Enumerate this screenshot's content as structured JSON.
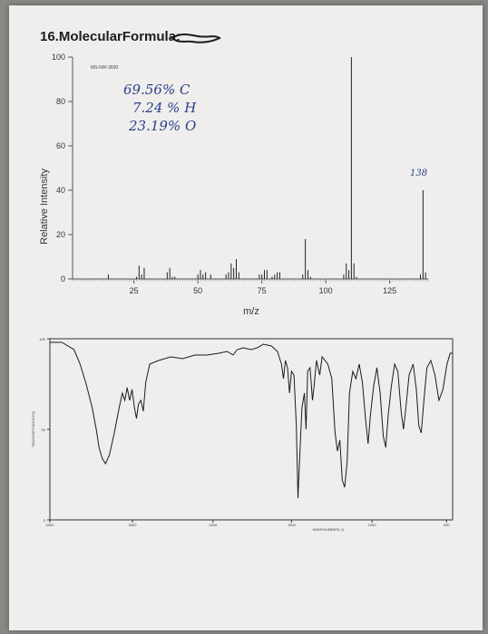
{
  "page": {
    "heading": "16.MolecularFormula:"
  },
  "chart_data": [
    {
      "type": "bar",
      "ylabel": "Relative Intensity",
      "xlabel": "m/z",
      "xlim": [
        1,
        140
      ],
      "ylim": [
        0,
        100
      ],
      "x_ticks": [
        25,
        50,
        75,
        100,
        125
      ],
      "y_ticks": [
        0,
        20,
        40,
        60,
        80,
        100
      ],
      "spectrum_id": "MS-NW-3600",
      "annotations": {
        "composition": [
          "69.56% C",
          "7.24 % H",
          "23.19% O"
        ],
        "peak_label": "138"
      },
      "peaks": [
        {
          "x": 15,
          "y": 2
        },
        {
          "x": 26,
          "y": 1
        },
        {
          "x": 27,
          "y": 6
        },
        {
          "x": 28,
          "y": 2
        },
        {
          "x": 29,
          "y": 5
        },
        {
          "x": 38,
          "y": 3
        },
        {
          "x": 39,
          "y": 5
        },
        {
          "x": 40,
          "y": 1
        },
        {
          "x": 41,
          "y": 1
        },
        {
          "x": 50,
          "y": 2
        },
        {
          "x": 51,
          "y": 4
        },
        {
          "x": 52,
          "y": 2
        },
        {
          "x": 53,
          "y": 3
        },
        {
          "x": 55,
          "y": 2
        },
        {
          "x": 61,
          "y": 2
        },
        {
          "x": 62,
          "y": 3
        },
        {
          "x": 63,
          "y": 7
        },
        {
          "x": 64,
          "y": 5
        },
        {
          "x": 65,
          "y": 9
        },
        {
          "x": 66,
          "y": 3
        },
        {
          "x": 74,
          "y": 2
        },
        {
          "x": 75,
          "y": 2
        },
        {
          "x": 76,
          "y": 4
        },
        {
          "x": 77,
          "y": 4
        },
        {
          "x": 79,
          "y": 1
        },
        {
          "x": 80,
          "y": 2
        },
        {
          "x": 81,
          "y": 3
        },
        {
          "x": 82,
          "y": 3
        },
        {
          "x": 91,
          "y": 2
        },
        {
          "x": 92,
          "y": 18
        },
        {
          "x": 93,
          "y": 4
        },
        {
          "x": 94,
          "y": 1
        },
        {
          "x": 107,
          "y": 2
        },
        {
          "x": 108,
          "y": 7
        },
        {
          "x": 109,
          "y": 4
        },
        {
          "x": 110,
          "y": 100
        },
        {
          "x": 111,
          "y": 7
        },
        {
          "x": 112,
          "y": 1
        },
        {
          "x": 137,
          "y": 2
        },
        {
          "x": 138,
          "y": 40
        },
        {
          "x": 139,
          "y": 3
        }
      ]
    },
    {
      "type": "line",
      "xlabel": "WAVENUMBER(-1)",
      "ylabel": "TRANSMITTANCE(%)",
      "x_ticks": [
        "4000",
        "3000",
        "2000",
        "1500",
        "1000",
        "500"
      ],
      "y_ticks": [
        "100",
        "50",
        "0"
      ],
      "x_domain": [
        0,
        1
      ],
      "y_domain": [
        0,
        100
      ],
      "points": [
        [
          0.0,
          98
        ],
        [
          0.03,
          98
        ],
        [
          0.06,
          94
        ],
        [
          0.075,
          86
        ],
        [
          0.09,
          75
        ],
        [
          0.105,
          62
        ],
        [
          0.115,
          50
        ],
        [
          0.122,
          40
        ],
        [
          0.13,
          34
        ],
        [
          0.138,
          31
        ],
        [
          0.148,
          36
        ],
        [
          0.16,
          48
        ],
        [
          0.172,
          62
        ],
        [
          0.18,
          70
        ],
        [
          0.186,
          66
        ],
        [
          0.192,
          73
        ],
        [
          0.198,
          66
        ],
        [
          0.204,
          72
        ],
        [
          0.21,
          62
        ],
        [
          0.215,
          56
        ],
        [
          0.22,
          64
        ],
        [
          0.226,
          66
        ],
        [
          0.232,
          60
        ],
        [
          0.238,
          76
        ],
        [
          0.248,
          86
        ],
        [
          0.27,
          88
        ],
        [
          0.3,
          90
        ],
        [
          0.33,
          89
        ],
        [
          0.36,
          91
        ],
        [
          0.39,
          91
        ],
        [
          0.42,
          92
        ],
        [
          0.44,
          93
        ],
        [
          0.455,
          91
        ],
        [
          0.465,
          94
        ],
        [
          0.48,
          95
        ],
        [
          0.5,
          94
        ],
        [
          0.515,
          95
        ],
        [
          0.53,
          97
        ],
        [
          0.55,
          96
        ],
        [
          0.565,
          93
        ],
        [
          0.575,
          86
        ],
        [
          0.58,
          78
        ],
        [
          0.585,
          88
        ],
        [
          0.59,
          84
        ],
        [
          0.595,
          70
        ],
        [
          0.6,
          82
        ],
        [
          0.606,
          80
        ],
        [
          0.612,
          52
        ],
        [
          0.616,
          12
        ],
        [
          0.621,
          38
        ],
        [
          0.626,
          62
        ],
        [
          0.632,
          70
        ],
        [
          0.636,
          50
        ],
        [
          0.64,
          82
        ],
        [
          0.646,
          84
        ],
        [
          0.652,
          66
        ],
        [
          0.656,
          74
        ],
        [
          0.662,
          88
        ],
        [
          0.67,
          80
        ],
        [
          0.676,
          90
        ],
        [
          0.69,
          86
        ],
        [
          0.7,
          78
        ],
        [
          0.708,
          48
        ],
        [
          0.714,
          38
        ],
        [
          0.72,
          44
        ],
        [
          0.726,
          22
        ],
        [
          0.732,
          18
        ],
        [
          0.738,
          32
        ],
        [
          0.744,
          70
        ],
        [
          0.752,
          82
        ],
        [
          0.76,
          78
        ],
        [
          0.768,
          86
        ],
        [
          0.776,
          76
        ],
        [
          0.784,
          55
        ],
        [
          0.79,
          42
        ],
        [
          0.796,
          58
        ],
        [
          0.804,
          74
        ],
        [
          0.812,
          84
        ],
        [
          0.82,
          70
        ],
        [
          0.828,
          46
        ],
        [
          0.834,
          40
        ],
        [
          0.84,
          58
        ],
        [
          0.848,
          74
        ],
        [
          0.856,
          86
        ],
        [
          0.864,
          82
        ],
        [
          0.872,
          60
        ],
        [
          0.878,
          50
        ],
        [
          0.884,
          62
        ],
        [
          0.892,
          80
        ],
        [
          0.902,
          86
        ],
        [
          0.91,
          72
        ],
        [
          0.916,
          52
        ],
        [
          0.922,
          48
        ],
        [
          0.928,
          64
        ],
        [
          0.936,
          84
        ],
        [
          0.946,
          88
        ],
        [
          0.956,
          80
        ],
        [
          0.966,
          66
        ],
        [
          0.976,
          72
        ],
        [
          0.986,
          86
        ],
        [
          0.994,
          92
        ],
        [
          1.0,
          92
        ]
      ]
    }
  ]
}
